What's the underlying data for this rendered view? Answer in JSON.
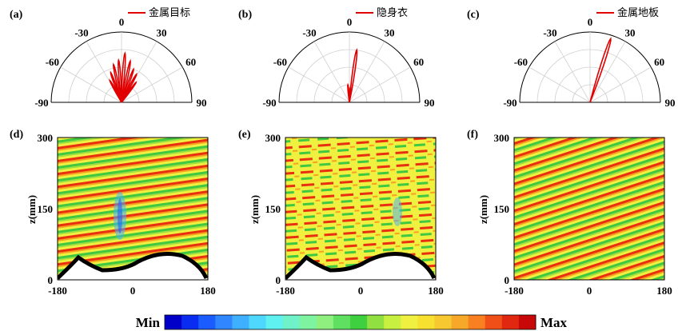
{
  "panels": [
    {
      "id": "a",
      "label": "(a)",
      "legend": "金属目标"
    },
    {
      "id": "b",
      "label": "(b)",
      "legend": "隐身衣"
    },
    {
      "id": "c",
      "label": "(c)",
      "legend": "金属地板"
    },
    {
      "id": "d",
      "label": "(d)"
    },
    {
      "id": "e",
      "label": "(e)"
    },
    {
      "id": "f",
      "label": "(f)"
    }
  ],
  "polar": {
    "angle_ticks": [
      "-90",
      "-60",
      "-30",
      "0",
      "30",
      "60",
      "90"
    ],
    "line_color": "#e00000"
  },
  "field": {
    "ylabel": "z(mm)",
    "yticks": [
      "0",
      "150",
      "300"
    ],
    "xticks": [
      "-180",
      "0",
      "180"
    ]
  },
  "colorbar": {
    "min_label": "Min",
    "max_label": "Max",
    "colors": [
      "#0000c8",
      "#0a2cf0",
      "#1a5cff",
      "#2f86ff",
      "#3fb0ff",
      "#4fd8ff",
      "#5ff0f0",
      "#6ff2c8",
      "#7ff4a0",
      "#8ff080",
      "#5fe060",
      "#3fd040",
      "#8fe040",
      "#c8f040",
      "#f0f040",
      "#f8e030",
      "#f8c830",
      "#f8a828",
      "#f88020",
      "#f05018",
      "#e02810",
      "#c80808"
    ]
  },
  "chart_data": [
    {
      "type": "polar",
      "title": "(a)",
      "series": [
        {
          "name": "金属目标"
        }
      ],
      "theta_range": [
        -90,
        90
      ],
      "lobes_deg": [
        -28,
        -20,
        -12,
        -4,
        4,
        12,
        20,
        28,
        36
      ],
      "lobe_magnitudes": [
        0.35,
        0.45,
        0.55,
        0.6,
        0.7,
        0.6,
        0.5,
        0.45,
        0.35
      ]
    },
    {
      "type": "polar",
      "title": "(b)",
      "series": [
        {
          "name": "隐身衣"
        }
      ],
      "theta_range": [
        -90,
        90
      ],
      "lobes_deg": [
        8,
        -5,
        3
      ],
      "lobe_magnitudes": [
        0.75,
        0.25,
        0.2
      ]
    },
    {
      "type": "polar",
      "title": "(c)",
      "series": [
        {
          "name": "金属地板"
        }
      ],
      "theta_range": [
        -90,
        90
      ],
      "lobes_deg": [
        18
      ],
      "lobe_magnitudes": [
        0.95
      ]
    }
  ]
}
